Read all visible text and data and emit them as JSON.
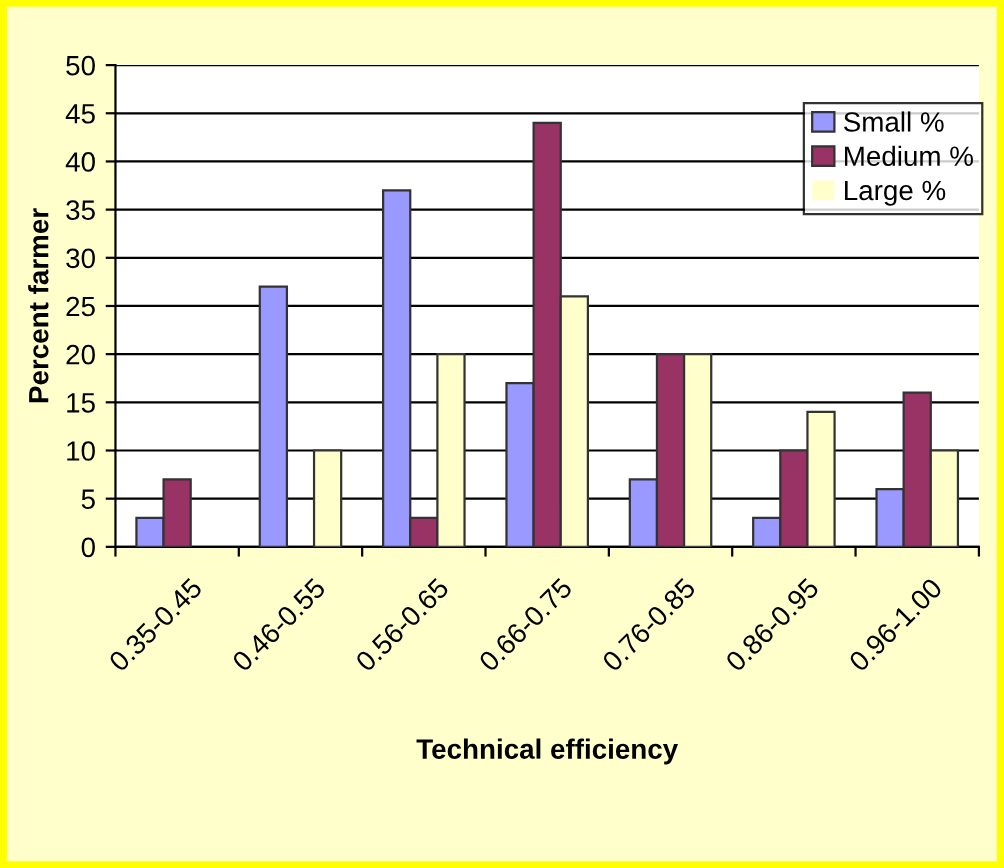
{
  "chart_data": {
    "type": "bar",
    "xlabel": "Technical efficiency",
    "ylabel": "Percent farmer",
    "categories": [
      "0.35-0.45",
      "0.46-0.55",
      "0.56-0.65",
      "0.66-0.75",
      "0.76-0.85",
      "0.86-0.95",
      "0.96-1.00"
    ],
    "series": [
      {
        "name": "Small %",
        "color": "#9999ff",
        "values": [
          3,
          27,
          37,
          17,
          7,
          3,
          6
        ]
      },
      {
        "name": "Medium %",
        "color": "#993366",
        "values": [
          7,
          0,
          3,
          44,
          20,
          10,
          16
        ]
      },
      {
        "name": "Large %",
        "color": "#ffffcc",
        "values": [
          0,
          10,
          20,
          26,
          20,
          14,
          10
        ]
      }
    ],
    "ylim": [
      0,
      50
    ],
    "yticks": [
      0,
      5,
      10,
      15,
      20,
      25,
      30,
      35,
      40,
      45,
      50
    ],
    "grid": "y",
    "legend": "top right"
  }
}
